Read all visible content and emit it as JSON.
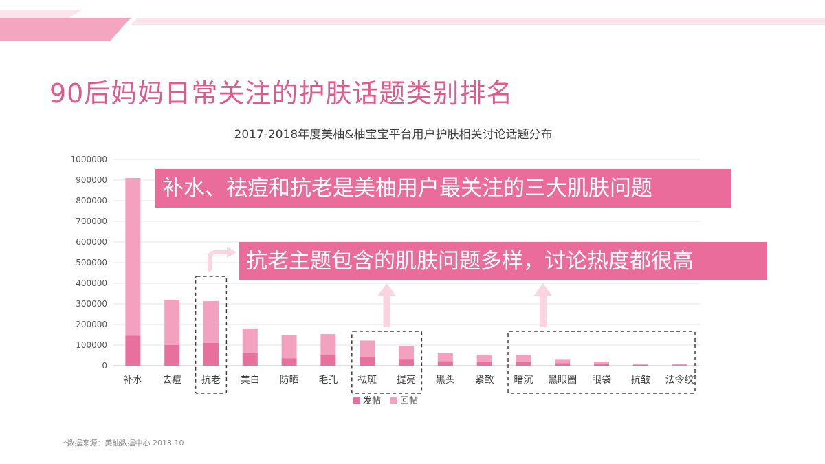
{
  "slide": {
    "title": "90后妈妈日常关注的护肤话题类别排名",
    "footnote": "*数据来源：美柚数据中心  2018.10"
  },
  "callouts": [
    "补水、祛痘和抗老是美柚用户最关注的三大肌肤问题",
    "抗老主题包含的肌肤问题多样，讨论热度都很高"
  ],
  "colors": {
    "accent": "#e05a8c",
    "callout_bg": "#ea6c9a",
    "series_post": "#e8709c",
    "series_reply": "#f2a2be",
    "deco_pink": "#f4a6c1"
  },
  "chart_data": {
    "type": "bar",
    "stacked": true,
    "title": "2017-2018年度美柚&柚宝宝平台用户护肤相关讨论话题分布",
    "categories": [
      "补水",
      "去痘",
      "抗老",
      "美白",
      "防晒",
      "毛孔",
      "祛斑",
      "提亮",
      "黑头",
      "紧致",
      "暗沉",
      "黑眼圈",
      "眼袋",
      "抗皱",
      "法令纹"
    ],
    "series": [
      {
        "name": "发帖",
        "values": [
          145000,
          100000,
          110000,
          60000,
          35000,
          50000,
          40000,
          33000,
          22000,
          20000,
          18000,
          12000,
          8000,
          4000,
          3000
        ]
      },
      {
        "name": "回帖",
        "values": [
          765000,
          220000,
          203000,
          120000,
          112000,
          103000,
          82000,
          62000,
          38000,
          33000,
          35000,
          20000,
          12000,
          6000,
          4000
        ]
      }
    ],
    "ylim": [
      0,
      1000000
    ],
    "yticks": [
      0,
      100000,
      200000,
      300000,
      400000,
      500000,
      600000,
      700000,
      800000,
      900000,
      1000000
    ],
    "grid": true,
    "legend": "bottom",
    "highlight_groups": [
      [
        "抗老"
      ],
      [
        "祛斑",
        "提亮"
      ],
      [
        "暗沉",
        "黑眼圈",
        "眼袋",
        "抗皱",
        "法令纹"
      ]
    ]
  }
}
